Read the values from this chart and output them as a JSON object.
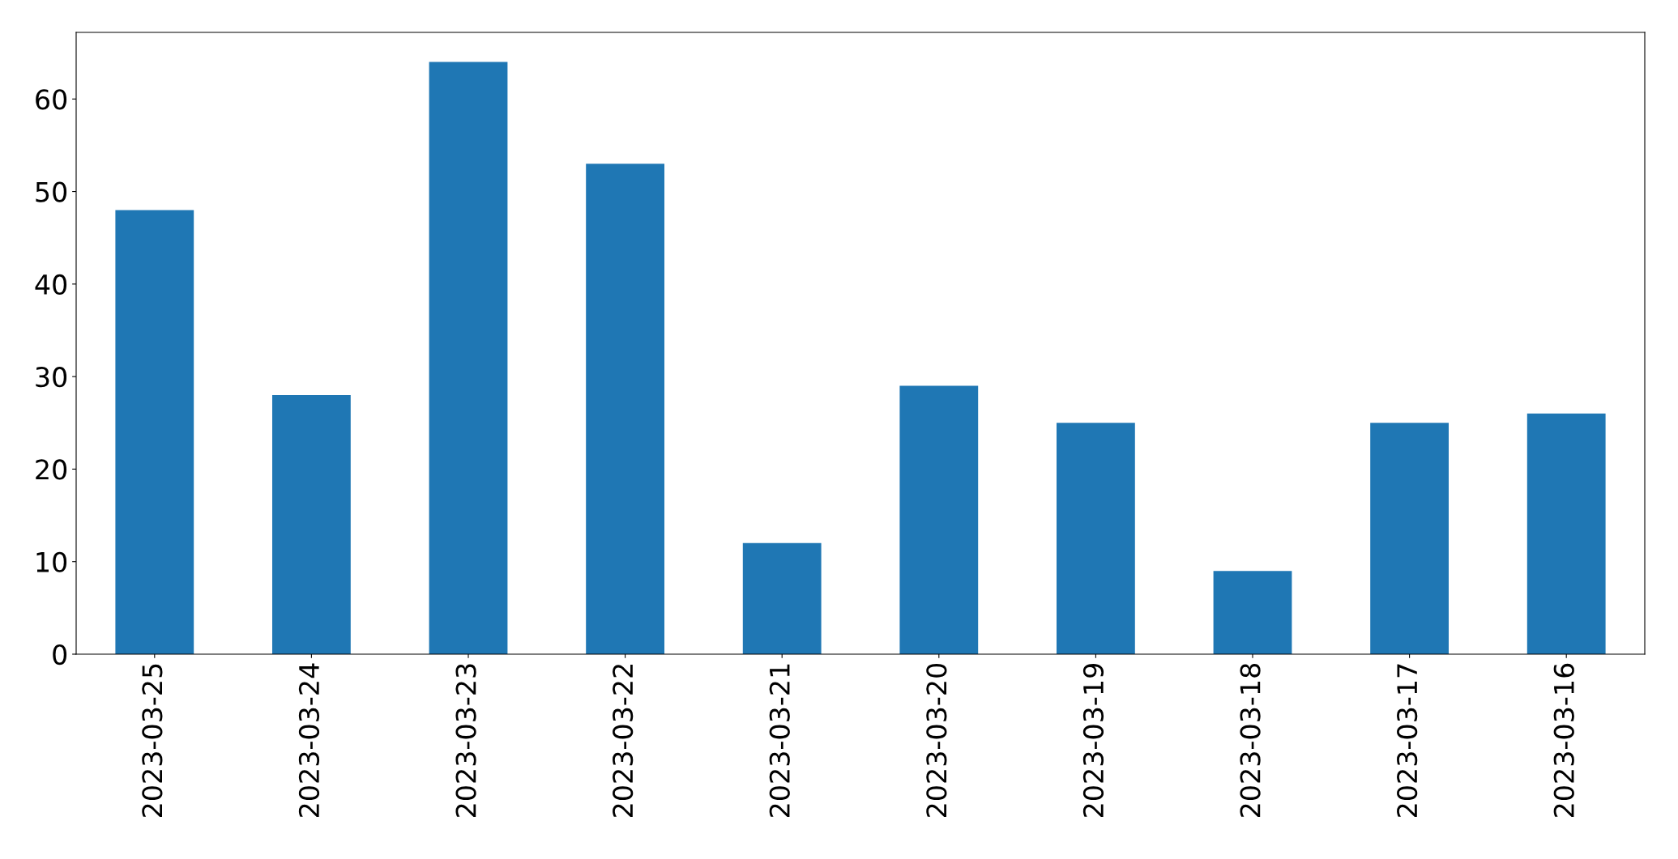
{
  "chart_data": {
    "type": "bar",
    "categories": [
      "2023-03-25",
      "2023-03-24",
      "2023-03-23",
      "2023-03-22",
      "2023-03-21",
      "2023-03-20",
      "2023-03-19",
      "2023-03-18",
      "2023-03-17",
      "2023-03-16"
    ],
    "values": [
      48,
      28,
      64,
      53,
      12,
      29,
      25,
      9,
      25,
      26
    ],
    "color": "#1f77b4",
    "ylim": [
      0,
      67.2
    ],
    "yticks": [
      0,
      10,
      20,
      30,
      40,
      50,
      60
    ],
    "grid": false
  }
}
